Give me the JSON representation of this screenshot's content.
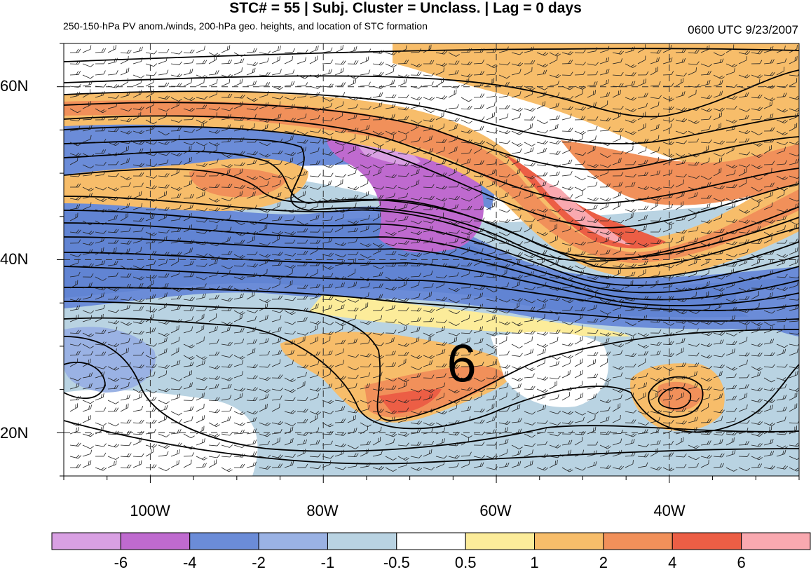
{
  "header": {
    "title": "STC# = 55 | Subj. Cluster = Unclass. | Lag = 0 days",
    "subtitle": "250-150-hPa PV anom./winds, 200-hPa geo. heights, and location of STC formation",
    "datetime": "0600 UTC  9/23/2007"
  },
  "map": {
    "lat_labels": [
      "60N",
      "40N",
      "20N"
    ],
    "lon_labels": [
      "100W",
      "80W",
      "60W",
      "40W"
    ],
    "lat_values": [
      60,
      40,
      20
    ],
    "lon_values": [
      -100,
      -80,
      -60,
      -40
    ],
    "lon_range": [
      -110,
      -25
    ],
    "lat_range": [
      15,
      65
    ],
    "stc_marker": {
      "symbol": "6",
      "lon": -64,
      "lat": 28
    }
  },
  "colorbar": {
    "labels": [
      "-6",
      "-4",
      "-2",
      "-1",
      "-0.5",
      "0.5",
      "1",
      "2",
      "4",
      "6"
    ],
    "colors": [
      "#d9a0e3",
      "#bf6acf",
      "#6b8cd8",
      "#9ab2e4",
      "#b9d3e2",
      "#ffffff",
      "#fcec9a",
      "#f7bd6a",
      "#f1905a",
      "#ec5e45",
      "#f9a9b0"
    ]
  },
  "colors": {
    "anomaly_scale": [
      "#d9a0e3",
      "#bf6acf",
      "#6b8cd8",
      "#9ab2e4",
      "#b9d3e2",
      "#ffffff",
      "#fcec9a",
      "#f7bd6a",
      "#f1905a",
      "#ec5e45",
      "#f9a9b0"
    ]
  }
}
